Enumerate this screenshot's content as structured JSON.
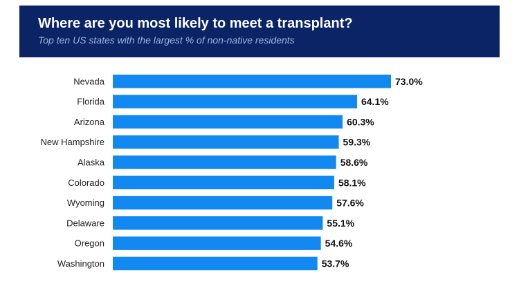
{
  "chart_data": {
    "type": "bar",
    "orientation": "horizontal",
    "title": "Where are you most likely to meet a transplant?",
    "subtitle": "Top ten US states with the largest % of non-native residents",
    "categories": [
      "Nevada",
      "Florida",
      "Arizona",
      "New Hampshire",
      "Alaska",
      "Colorado",
      "Wyoming",
      "Delaware",
      "Oregon",
      "Washington"
    ],
    "values": [
      73.0,
      64.1,
      60.3,
      59.3,
      58.6,
      58.1,
      57.6,
      55.1,
      54.6,
      53.7
    ],
    "data_labels": [
      "73.0%",
      "64.1%",
      "60.3%",
      "59.3%",
      "58.6%",
      "58.1%",
      "57.6%",
      "55.1%",
      "54.6%",
      "53.7%"
    ],
    "xlim": [
      0,
      73.0
    ],
    "bar_color": "#1289f0",
    "header_color": "#0a2466",
    "grid": false,
    "legend": "none"
  }
}
